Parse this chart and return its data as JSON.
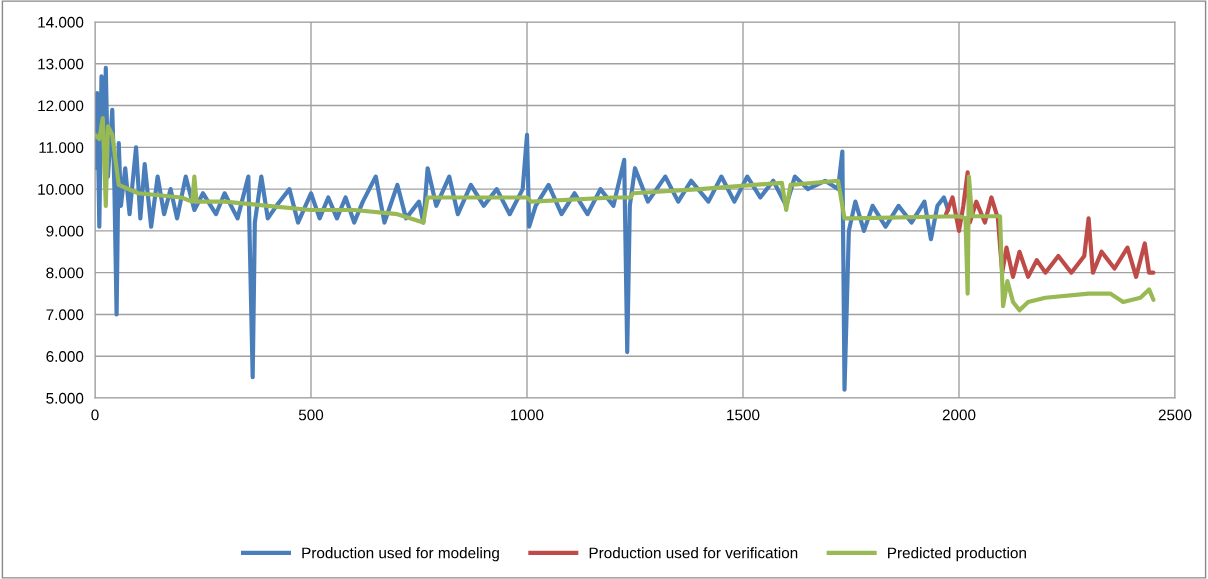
{
  "chart_data": {
    "type": "line",
    "xlim": [
      0,
      2500
    ],
    "xticks": [
      0,
      500,
      1000,
      1500,
      2000,
      2500
    ],
    "ylim": [
      5000,
      14000
    ],
    "yticks": [
      {
        "value": 5000,
        "label": "5.000"
      },
      {
        "value": 6000,
        "label": "6.000"
      },
      {
        "value": 7000,
        "label": "7.000"
      },
      {
        "value": 8000,
        "label": "8.000"
      },
      {
        "value": 9000,
        "label": "9.000"
      },
      {
        "value": 10000,
        "label": "10.000"
      },
      {
        "value": 11000,
        "label": "11.000"
      },
      {
        "value": 12000,
        "label": "12.000"
      },
      {
        "value": 13000,
        "label": "13.000"
      },
      {
        "value": 14000,
        "label": "14.000"
      }
    ],
    "grid": true,
    "legend": "bottom",
    "marker": "none",
    "line_style": "solid",
    "series": [
      {
        "name": "Production used for modeling",
        "color": "#4a7ebb",
        "x": [
          0,
          5,
          10,
          15,
          22,
          25,
          30,
          40,
          45,
          50,
          55,
          60,
          70,
          80,
          95,
          105,
          115,
          130,
          145,
          160,
          175,
          190,
          210,
          230,
          250,
          280,
          300,
          330,
          355,
          365,
          370,
          385,
          400,
          420,
          450,
          470,
          500,
          520,
          540,
          560,
          580,
          600,
          620,
          650,
          670,
          700,
          720,
          750,
          760,
          770,
          790,
          820,
          840,
          870,
          900,
          930,
          960,
          990,
          1000,
          1005,
          1020,
          1050,
          1080,
          1110,
          1140,
          1170,
          1200,
          1225,
          1232,
          1238,
          1250,
          1280,
          1320,
          1350,
          1380,
          1420,
          1450,
          1480,
          1510,
          1540,
          1570,
          1600,
          1620,
          1650,
          1690,
          1720,
          1730,
          1735,
          1745,
          1760,
          1780,
          1800,
          1830,
          1860,
          1890,
          1920,
          1935,
          1950,
          1965,
          1975
        ],
        "values": [
          10500,
          12300,
          9100,
          12700,
          11000,
          12900,
          10300,
          11900,
          10000,
          7000,
          11100,
          9600,
          10500,
          9400,
          11000,
          9300,
          10600,
          9100,
          10300,
          9400,
          10000,
          9300,
          10300,
          9500,
          9900,
          9400,
          9900,
          9300,
          10300,
          5500,
          9200,
          10300,
          9300,
          9600,
          10000,
          9200,
          9900,
          9300,
          9800,
          9300,
          9800,
          9200,
          9700,
          10300,
          9200,
          10100,
          9300,
          9700,
          9200,
          10500,
          9600,
          10300,
          9400,
          10100,
          9600,
          10000,
          9400,
          10000,
          11300,
          9100,
          9600,
          10100,
          9400,
          9900,
          9400,
          10000,
          9600,
          10700,
          6100,
          9600,
          10500,
          9700,
          10300,
          9700,
          10200,
          9700,
          10300,
          9700,
          10300,
          9800,
          10200,
          9600,
          10300,
          10000,
          10200,
          10000,
          10900,
          5200,
          9000,
          9700,
          9000,
          9600,
          9100,
          9600,
          9200,
          9700,
          8800,
          9600,
          9800,
          9500
        ]
      },
      {
        "name": "Production used for verification",
        "color": "#be4b48",
        "x": [
          1970,
          1985,
          2000,
          2010,
          2020,
          2025,
          2040,
          2060,
          2075,
          2090,
          2100,
          2110,
          2125,
          2140,
          2160,
          2180,
          2200,
          2230,
          2260,
          2290,
          2300,
          2310,
          2330,
          2360,
          2390,
          2410,
          2430,
          2440,
          2450
        ],
        "values": [
          9400,
          9800,
          9000,
          9600,
          10400,
          9200,
          9700,
          9200,
          9800,
          9300,
          8000,
          8600,
          7900,
          8500,
          7900,
          8300,
          8000,
          8400,
          8000,
          8400,
          9300,
          8000,
          8500,
          8100,
          8600,
          7900,
          8700,
          8000,
          8000
        ]
      },
      {
        "name": "Predicted production",
        "color": "#98b954",
        "x": [
          0,
          10,
          18,
          25,
          30,
          40,
          55,
          100,
          200,
          225,
          230,
          235,
          300,
          400,
          500,
          600,
          700,
          760,
          770,
          1000,
          1010,
          1200,
          1240,
          1245,
          1400,
          1590,
          1600,
          1610,
          1720,
          1735,
          1750,
          2000,
          2015,
          2020,
          2023,
          2030,
          2095,
          2102,
          2112,
          2125,
          2140,
          2160,
          2200,
          2300,
          2350,
          2380,
          2420,
          2440,
          2450
        ],
        "values": [
          11300,
          11200,
          11700,
          9600,
          11500,
          11300,
          10100,
          9900,
          9800,
          9700,
          10300,
          9700,
          9700,
          9600,
          9500,
          9500,
          9400,
          9200,
          9800,
          9800,
          9700,
          9800,
          9800,
          9900,
          10000,
          10150,
          9500,
          10100,
          10200,
          9300,
          9300,
          9350,
          9300,
          7500,
          10300,
          9350,
          9350,
          7200,
          7800,
          7300,
          7100,
          7300,
          7400,
          7500,
          7500,
          7300,
          7400,
          7600,
          7350
        ]
      }
    ]
  }
}
